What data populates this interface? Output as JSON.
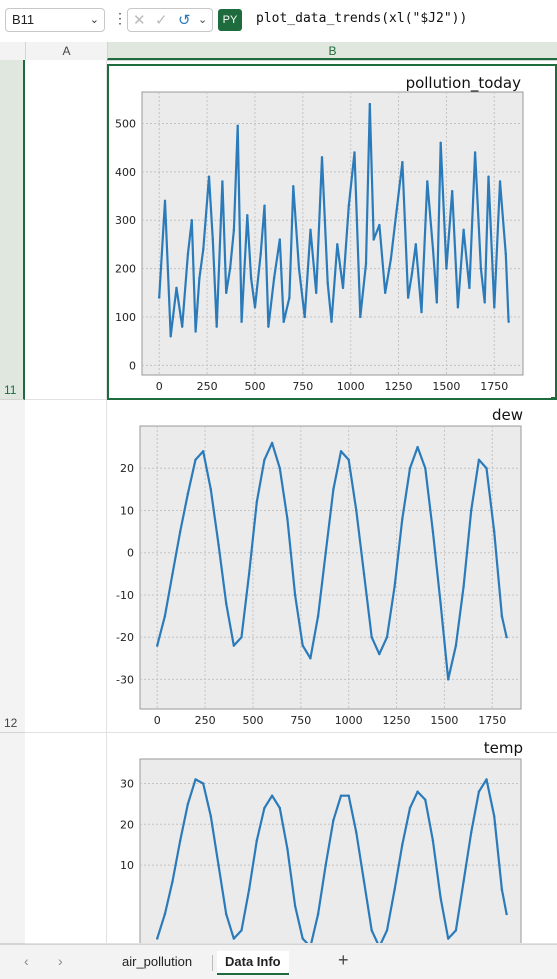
{
  "formula_bar": {
    "cell_ref": "B11",
    "py_badge": "PY",
    "formula": "plot_data_trends(xl(\"$J2\"))"
  },
  "columns": [
    "A",
    "B"
  ],
  "rows": [
    {
      "num": "11"
    },
    {
      "num": "12"
    }
  ],
  "sheet_tabs": {
    "tabs": [
      "air_pollution",
      "Data Info"
    ],
    "active": "Data Info"
  },
  "colors": {
    "line": "#2b7bba",
    "accent": "#1e6b3d",
    "plot_bg": "#ebebeb"
  },
  "chart_data": [
    {
      "type": "line",
      "title": "pollution_today",
      "xlabel": "",
      "ylabel": "",
      "xlim": [
        -90,
        1900
      ],
      "ylim": [
        -20,
        565
      ],
      "xticks": [
        0,
        250,
        500,
        750,
        1000,
        1250,
        1500,
        1750
      ],
      "yticks": [
        0,
        100,
        200,
        300,
        400,
        500
      ],
      "grid": true,
      "series": [
        {
          "x": [
            0,
            30,
            60,
            90,
            120,
            150,
            170,
            190,
            210,
            230,
            260,
            280,
            300,
            330,
            350,
            370,
            390,
            410,
            430,
            460,
            480,
            500,
            530,
            550,
            570,
            600,
            630,
            650,
            680,
            700,
            730,
            760,
            790,
            820,
            850,
            880,
            900,
            930,
            960,
            990,
            1020,
            1050,
            1080,
            1100,
            1120,
            1150,
            1180,
            1210,
            1240,
            1270,
            1300,
            1320,
            1340,
            1370,
            1400,
            1430,
            1450,
            1470,
            1500,
            1530,
            1560,
            1590,
            1620,
            1650,
            1680,
            1700,
            1720,
            1750,
            1780,
            1810,
            1825
          ],
          "y": [
            140,
            340,
            60,
            160,
            80,
            230,
            300,
            70,
            180,
            240,
            390,
            260,
            80,
            380,
            150,
            200,
            280,
            495,
            90,
            310,
            180,
            120,
            230,
            330,
            80,
            180,
            260,
            90,
            140,
            370,
            200,
            100,
            280,
            150,
            430,
            170,
            90,
            250,
            160,
            330,
            440,
            100,
            210,
            540,
            260,
            290,
            150,
            220,
            320,
            420,
            140,
            190,
            250,
            110,
            380,
            240,
            130,
            460,
            200,
            360,
            120,
            280,
            160,
            440,
            200,
            130,
            390,
            120,
            380,
            230,
            90
          ]
        }
      ]
    },
    {
      "type": "line",
      "title": "dew",
      "xlabel": "",
      "ylabel": "",
      "xlim": [
        -90,
        1900
      ],
      "ylim": [
        -37,
        30
      ],
      "xticks": [
        0,
        250,
        500,
        750,
        1000,
        1250,
        1500,
        1750
      ],
      "yticks": [
        -30,
        -20,
        -10,
        0,
        10,
        20
      ],
      "grid": true,
      "series": [
        {
          "x": [
            0,
            40,
            80,
            120,
            160,
            200,
            240,
            280,
            320,
            360,
            400,
            440,
            480,
            520,
            560,
            600,
            640,
            680,
            720,
            760,
            800,
            840,
            880,
            920,
            960,
            1000,
            1040,
            1080,
            1120,
            1160,
            1200,
            1240,
            1280,
            1320,
            1360,
            1400,
            1440,
            1480,
            1520,
            1560,
            1600,
            1640,
            1680,
            1720,
            1760,
            1800,
            1825
          ],
          "y": [
            -22,
            -15,
            -5,
            5,
            14,
            22,
            24,
            15,
            2,
            -12,
            -22,
            -20,
            -5,
            12,
            22,
            26,
            20,
            8,
            -10,
            -22,
            -25,
            -15,
            0,
            15,
            24,
            22,
            10,
            -5,
            -20,
            -24,
            -20,
            -8,
            8,
            20,
            25,
            20,
            5,
            -12,
            -30,
            -22,
            -8,
            10,
            22,
            20,
            5,
            -15,
            -20
          ]
        }
      ]
    },
    {
      "type": "line",
      "title": "temp",
      "xlabel": "",
      "ylabel": "",
      "xlim": [
        -90,
        1900
      ],
      "ylim": [
        -13,
        36
      ],
      "xticks": [],
      "yticks": [
        10,
        20,
        30
      ],
      "grid": true,
      "series": [
        {
          "x": [
            0,
            40,
            80,
            120,
            160,
            200,
            240,
            280,
            320,
            360,
            400,
            440,
            480,
            520,
            560,
            600,
            640,
            680,
            720,
            760,
            800,
            840,
            880,
            920,
            960,
            1000,
            1040,
            1080,
            1120,
            1160,
            1200,
            1240,
            1280,
            1320,
            1360,
            1400,
            1440,
            1480,
            1520,
            1560,
            1600,
            1640,
            1680,
            1720,
            1760,
            1800,
            1825
          ],
          "y": [
            -8,
            -2,
            6,
            16,
            25,
            31,
            30,
            22,
            10,
            -2,
            -8,
            -6,
            4,
            16,
            24,
            27,
            24,
            14,
            0,
            -8,
            -10,
            -2,
            10,
            21,
            27,
            27,
            18,
            6,
            -6,
            -10,
            -6,
            4,
            15,
            24,
            28,
            26,
            16,
            2,
            -8,
            -6,
            6,
            18,
            28,
            31,
            22,
            4,
            -2
          ]
        }
      ]
    }
  ]
}
